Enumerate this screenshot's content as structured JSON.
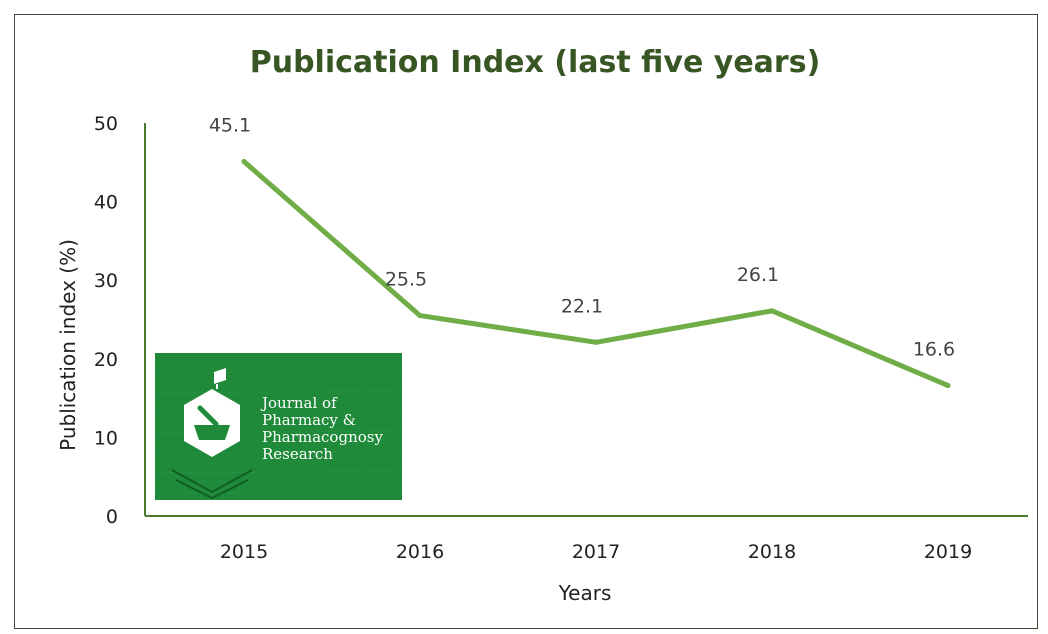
{
  "chart_data": {
    "type": "line",
    "title": "Publication Index (last five years)",
    "xlabel": "Years",
    "ylabel": "Publication index (%)",
    "categories": [
      "2015",
      "2016",
      "2017",
      "2018",
      "2019"
    ],
    "series": [
      {
        "values": [
          45.1,
          25.5,
          22.1,
          26.1,
          16.6
        ]
      }
    ],
    "data_labels": [
      "45.1",
      "25.5",
      "22.1",
      "26.1",
      "16.6"
    ],
    "ylim": [
      0,
      50
    ],
    "yticks": [
      "0",
      "10",
      "20",
      "30",
      "40",
      "50"
    ],
    "grid": false,
    "legend": "none",
    "line_color": "#70ad47",
    "title_color": "#375623",
    "axis_color": "#4e7a2c"
  },
  "logo": {
    "lines": [
      "Journal of",
      "Pharmacy &",
      "Pharmacognosy",
      "Research"
    ],
    "bg_color": "#1e8a3a"
  }
}
